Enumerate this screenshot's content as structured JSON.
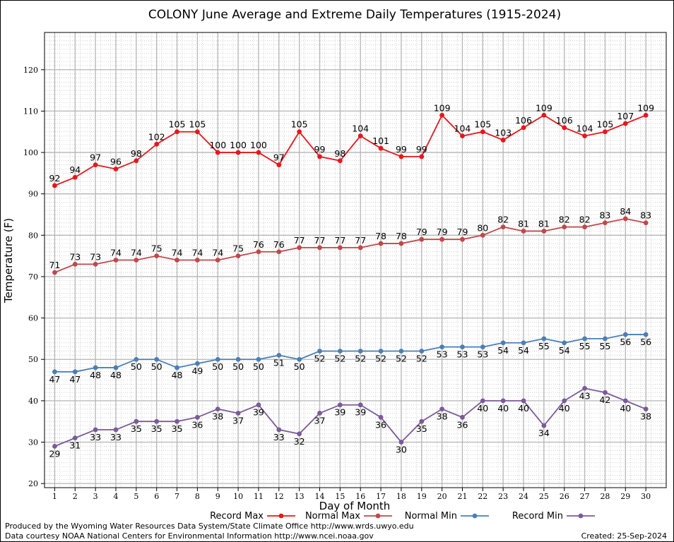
{
  "chart_data": {
    "type": "line",
    "title": "COLONY June Average and Extreme Daily Temperatures (1915-2024)",
    "xlabel": "Day of Month",
    "ylabel": "Temperature (F)",
    "ylim": [
      19,
      129
    ],
    "yticks": [
      20,
      30,
      40,
      50,
      60,
      70,
      80,
      90,
      100,
      110,
      120
    ],
    "x": [
      1,
      2,
      3,
      4,
      5,
      6,
      7,
      8,
      9,
      10,
      11,
      12,
      13,
      14,
      15,
      16,
      17,
      18,
      19,
      20,
      21,
      22,
      23,
      24,
      25,
      26,
      27,
      28,
      29,
      30
    ],
    "grid": true,
    "legend_position": "bottom",
    "series": [
      {
        "name": "Record Max",
        "color": "#e8161b",
        "values": [
          92,
          94,
          97,
          96,
          98,
          102,
          105,
          105,
          100,
          100,
          100,
          97,
          105,
          99,
          98,
          104,
          101,
          99,
          99,
          109,
          104,
          105,
          103,
          106,
          109,
          106,
          104,
          105,
          107,
          109
        ]
      },
      {
        "name": "Normal Max",
        "color": "#c2474a",
        "values": [
          71,
          73,
          73,
          74,
          74,
          75,
          74,
          74,
          74,
          75,
          76,
          76,
          77,
          77,
          77,
          77,
          78,
          78,
          79,
          79,
          79,
          80,
          82,
          81,
          81,
          82,
          82,
          83,
          84,
          83
        ]
      },
      {
        "name": "Normal Min",
        "color": "#4a7fb5",
        "values": [
          47,
          47,
          48,
          48,
          50,
          50,
          48,
          49,
          50,
          50,
          50,
          51,
          50,
          52,
          52,
          52,
          52,
          52,
          52,
          53,
          53,
          53,
          54,
          54,
          55,
          54,
          55,
          55,
          56,
          56
        ]
      },
      {
        "name": "Record Min",
        "color": "#7b5a9a",
        "values": [
          29,
          31,
          33,
          33,
          35,
          35,
          35,
          36,
          38,
          37,
          39,
          33,
          32,
          37,
          39,
          39,
          36,
          30,
          35,
          38,
          36,
          40,
          40,
          40,
          34,
          40,
          43,
          42,
          40,
          38
        ]
      }
    ]
  },
  "footer": {
    "producer": "Produced by the Wyoming Water Resources Data System/State Climate Office http://www.wrds.uwyo.edu",
    "courtesy": "Data courtesy NOAA National Centers for Environmental Information http://www.ncei.noaa.gov",
    "created": "Created:  25-Sep-2024"
  }
}
